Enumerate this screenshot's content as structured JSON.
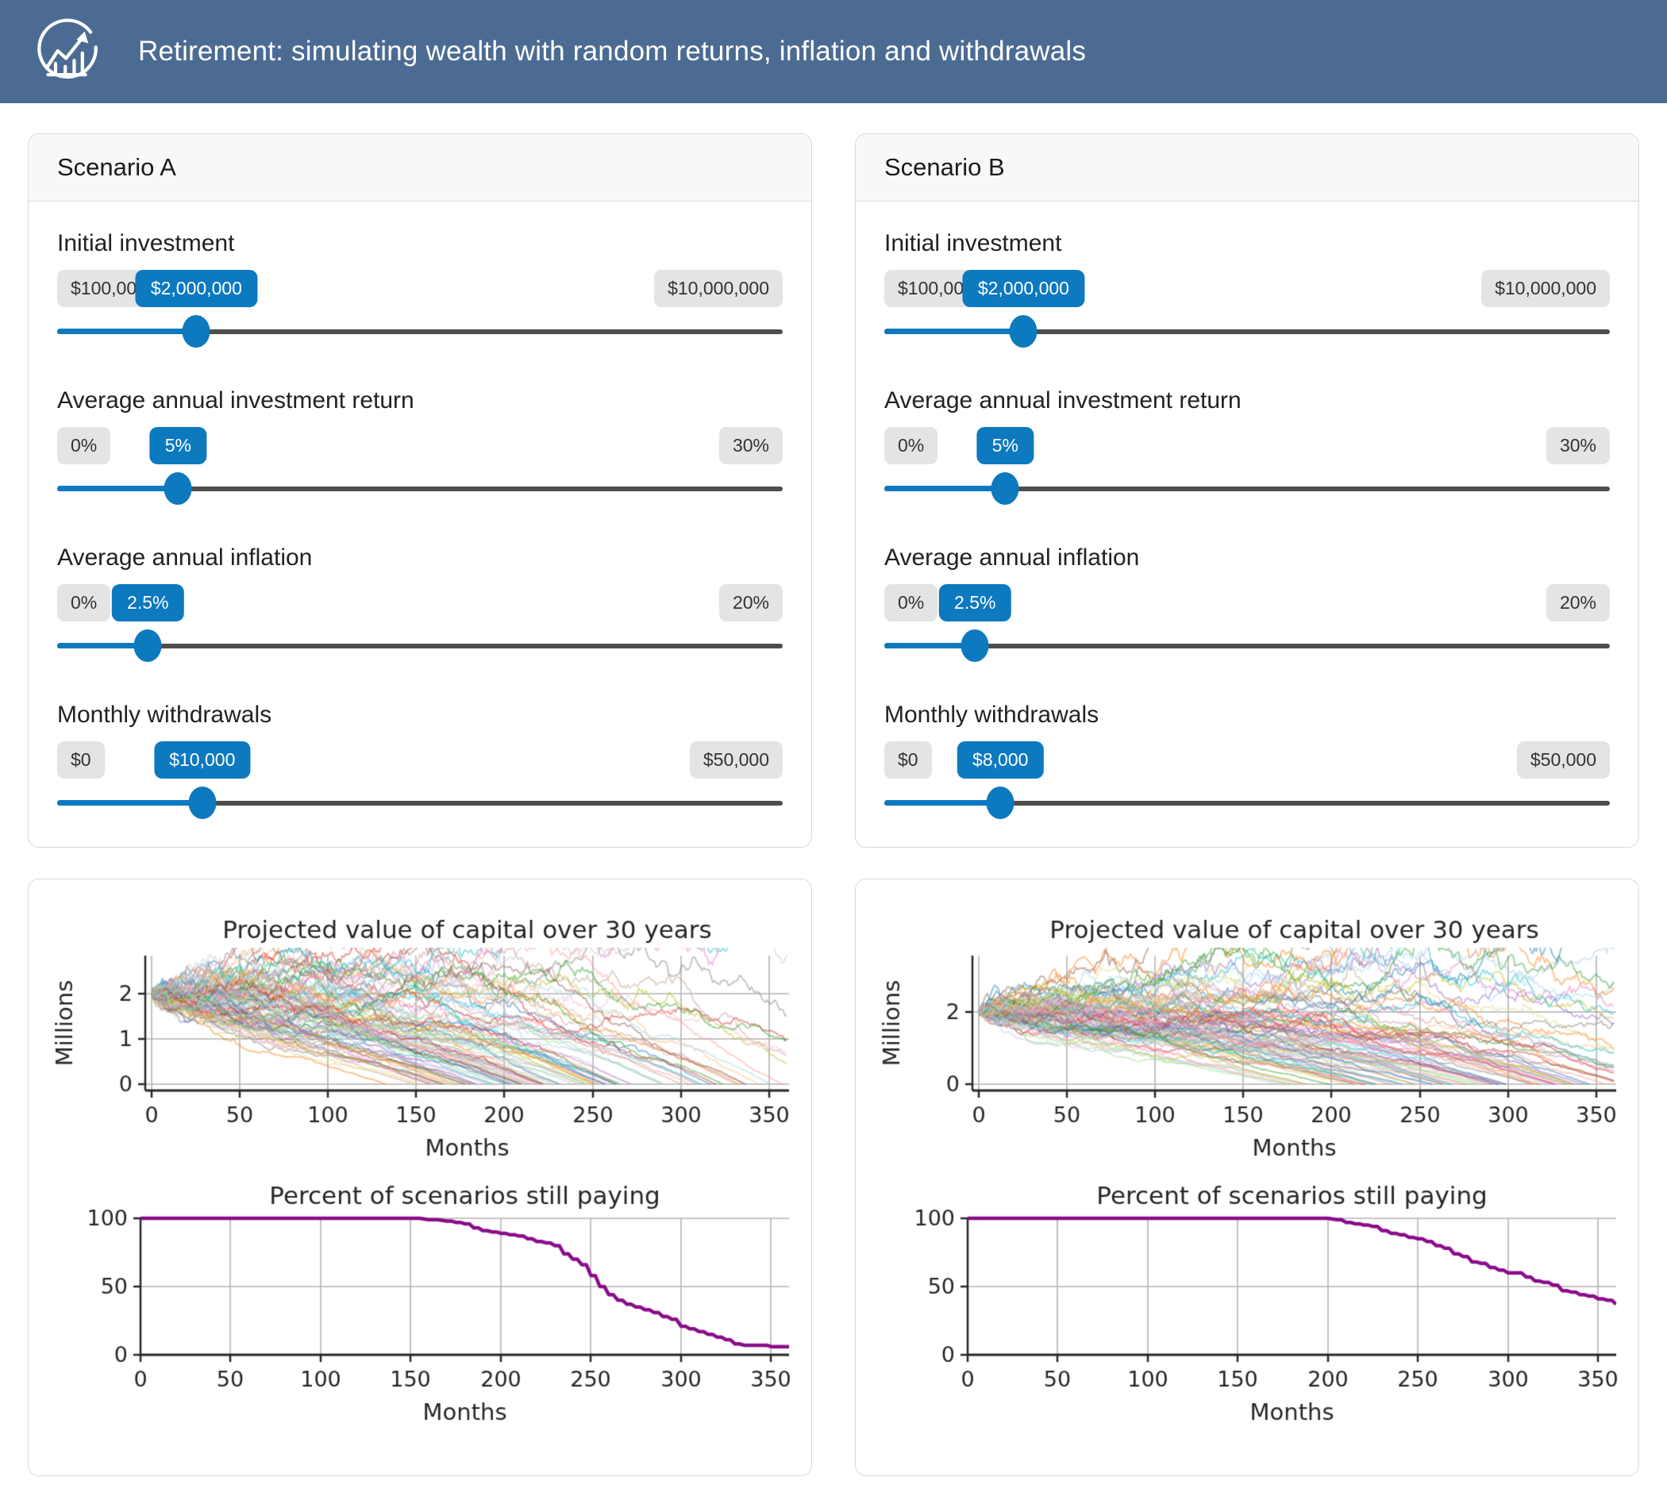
{
  "header": {
    "title": "Retirement: simulating wealth with random returns, inflation and withdrawals",
    "icon": "trend-chart-icon",
    "bg_color": "#4c6b93"
  },
  "colors": {
    "accent_blue": "#0d79bf",
    "track_gray": "#4d4d4d",
    "badge_gray": "#e4e4e4",
    "card_border": "#d8d8d8",
    "card_header_bg": "#f8f8f8",
    "grid_gray": "#b3b3b3",
    "spine_dark": "#262626",
    "survival_purple": "#8a0d8a"
  },
  "scenarios": [
    {
      "title": "Scenario A",
      "sliders": [
        {
          "label": "Initial investment",
          "min_label": "$100,000",
          "value_label": "$2,000,000",
          "max_label": "$10,000,000",
          "min": 100000,
          "max": 10000000,
          "value": 2000000
        },
        {
          "label": "Average annual investment return",
          "min_label": "0%",
          "value_label": "5%",
          "max_label": "30%",
          "min": 0,
          "max": 30,
          "value": 5
        },
        {
          "label": "Average annual inflation",
          "min_label": "0%",
          "value_label": "2.5%",
          "max_label": "20%",
          "min": 0,
          "max": 20,
          "value": 2.5
        },
        {
          "label": "Monthly withdrawals",
          "min_label": "$0",
          "value_label": "$10,000",
          "max_label": "$50,000",
          "min": 0,
          "max": 50000,
          "value": 10000
        }
      ]
    },
    {
      "title": "Scenario B",
      "sliders": [
        {
          "label": "Initial investment",
          "min_label": "$100,000",
          "value_label": "$2,000,000",
          "max_label": "$10,000,000",
          "min": 100000,
          "max": 10000000,
          "value": 2000000
        },
        {
          "label": "Average annual investment return",
          "min_label": "0%",
          "value_label": "5%",
          "max_label": "30%",
          "min": 0,
          "max": 30,
          "value": 5
        },
        {
          "label": "Average annual inflation",
          "min_label": "0%",
          "value_label": "2.5%",
          "max_label": "20%",
          "min": 0,
          "max": 20,
          "value": 2.5
        },
        {
          "label": "Monthly withdrawals",
          "min_label": "$0",
          "value_label": "$8,000",
          "max_label": "$50,000",
          "min": 0,
          "max": 50000,
          "value": 8000
        }
      ]
    }
  ],
  "chart_data": [
    {
      "scenario": "A",
      "type": "line",
      "subtype": "monte-carlo-spaghetti",
      "title": "Projected value of capital over 30 years",
      "xlabel": "Months",
      "ylabel": "Millions",
      "xticks": [
        0,
        50,
        100,
        150,
        200,
        250,
        300,
        350
      ],
      "yticks": [
        0,
        1,
        2
      ],
      "ylim": [
        -0.15,
        2.85
      ],
      "xlim": [
        -20,
        380
      ],
      "grid": true,
      "simulation": {
        "n_paths": 100,
        "months": 360,
        "start_millions": 2.0,
        "annual_return": 0.05,
        "annual_inflation": 0.025,
        "monthly_withdrawal": 10000,
        "monthly_volatility": 0.028,
        "seed": 42,
        "alpha": 0.45
      }
    },
    {
      "scenario": "A",
      "type": "line",
      "subtype": "survival-step",
      "title": "Percent of scenarios still paying",
      "xlabel": "Months",
      "ylabel": "",
      "xticks": [
        0,
        50,
        100,
        150,
        200,
        250,
        300,
        350
      ],
      "yticks": [
        0,
        50,
        100
      ],
      "ylim": [
        0,
        100
      ],
      "xlim": [
        0,
        360
      ],
      "grid": true,
      "line_color": "#8a0d8a",
      "series": [
        {
          "name": "percent_paying",
          "points": [
            [
              0,
              100
            ],
            [
              150,
              100
            ],
            [
              160,
              99
            ],
            [
              170,
              98
            ],
            [
              175,
              97
            ],
            [
              180,
              96
            ],
            [
              185,
              93
            ],
            [
              190,
              91
            ],
            [
              195,
              90
            ],
            [
              200,
              89
            ],
            [
              205,
              88
            ],
            [
              210,
              87
            ],
            [
              215,
              85
            ],
            [
              220,
              83
            ],
            [
              225,
              82
            ],
            [
              230,
              80
            ],
            [
              235,
              74
            ],
            [
              240,
              70
            ],
            [
              245,
              66
            ],
            [
              250,
              58
            ],
            [
              255,
              50
            ],
            [
              260,
              44
            ],
            [
              265,
              40
            ],
            [
              270,
              37
            ],
            [
              275,
              35
            ],
            [
              280,
              33
            ],
            [
              285,
              31
            ],
            [
              290,
              28
            ],
            [
              295,
              26
            ],
            [
              300,
              21
            ],
            [
              305,
              19
            ],
            [
              310,
              17
            ],
            [
              315,
              15
            ],
            [
              320,
              13
            ],
            [
              325,
              11
            ],
            [
              330,
              8
            ],
            [
              335,
              7
            ],
            [
              345,
              7
            ],
            [
              350,
              6
            ],
            [
              360,
              6
            ]
          ]
        }
      ]
    },
    {
      "scenario": "B",
      "type": "line",
      "subtype": "monte-carlo-spaghetti",
      "title": "Projected value of capital over 30 years",
      "xlabel": "Months",
      "ylabel": "Millions",
      "xticks": [
        0,
        50,
        100,
        150,
        200,
        250,
        300,
        350
      ],
      "yticks": [
        0,
        2
      ],
      "ylim": [
        -0.18,
        3.55
      ],
      "xlim": [
        -20,
        380
      ],
      "grid": true,
      "simulation": {
        "n_paths": 100,
        "months": 360,
        "start_millions": 2.0,
        "annual_return": 0.05,
        "annual_inflation": 0.025,
        "monthly_withdrawal": 8000,
        "monthly_volatility": 0.028,
        "seed": 7,
        "alpha": 0.45
      }
    },
    {
      "scenario": "B",
      "type": "line",
      "subtype": "survival-step",
      "title": "Percent of scenarios still paying",
      "xlabel": "Months",
      "ylabel": "",
      "xticks": [
        0,
        50,
        100,
        150,
        200,
        250,
        300,
        350
      ],
      "yticks": [
        0,
        50,
        100
      ],
      "ylim": [
        0,
        100
      ],
      "xlim": [
        0,
        360
      ],
      "grid": true,
      "line_color": "#8a0d8a",
      "series": [
        {
          "name": "percent_paying",
          "points": [
            [
              0,
              100
            ],
            [
              195,
              100
            ],
            [
              205,
              99
            ],
            [
              210,
              97
            ],
            [
              215,
              96
            ],
            [
              220,
              95
            ],
            [
              225,
              94
            ],
            [
              230,
              91
            ],
            [
              235,
              89
            ],
            [
              240,
              88
            ],
            [
              245,
              86
            ],
            [
              250,
              85
            ],
            [
              255,
              83
            ],
            [
              260,
              80
            ],
            [
              265,
              78
            ],
            [
              270,
              74
            ],
            [
              275,
              72
            ],
            [
              280,
              68
            ],
            [
              285,
              67
            ],
            [
              290,
              64
            ],
            [
              295,
              62
            ],
            [
              300,
              60
            ],
            [
              305,
              60
            ],
            [
              310,
              57
            ],
            [
              315,
              54
            ],
            [
              320,
              53
            ],
            [
              325,
              51
            ],
            [
              330,
              47
            ],
            [
              335,
              46
            ],
            [
              340,
              44
            ],
            [
              345,
              43
            ],
            [
              350,
              41
            ],
            [
              355,
              40
            ],
            [
              360,
              37
            ]
          ]
        }
      ]
    }
  ],
  "palette": [
    "#1f77b4",
    "#aec7e8",
    "#ff7f0e",
    "#ffbb78",
    "#2ca02c",
    "#98df8a",
    "#d62728",
    "#ff9896",
    "#9467bd",
    "#c5b0d5",
    "#8c564b",
    "#c49c94",
    "#e377c2",
    "#f7b6d2",
    "#7f7f7f",
    "#c7c7c7",
    "#bcbd22",
    "#dbdb8d",
    "#17becf",
    "#9edae5"
  ]
}
